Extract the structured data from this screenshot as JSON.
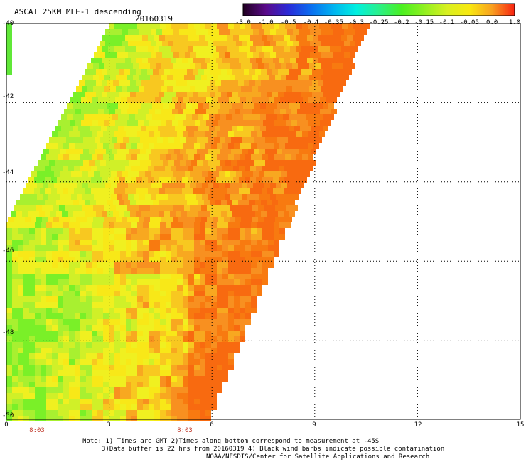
{
  "header": {
    "title": "ASCAT 25KM MLE-1 descending",
    "date": "20160319"
  },
  "colorbar": {
    "labels": [
      "-3.0",
      "-1.0",
      "-0.5",
      "-0.4",
      "-0.35",
      "-0.3",
      "-0.25",
      "-0.2",
      "-0.15",
      "-0.1",
      "-0.05",
      "0.0",
      "1.0"
    ],
    "colors": [
      "#200020",
      "#5a0a8a",
      "#2a2ad8",
      "#0a6ef0",
      "#00b4f0",
      "#00f0e0",
      "#2af08a",
      "#4af020",
      "#90f020",
      "#d8f020",
      "#f8e810",
      "#f8a020",
      "#f82010"
    ]
  },
  "axes": {
    "y_ticks": [
      "-40",
      "-42",
      "-44",
      "-46",
      "-48",
      "-50"
    ],
    "x_ticks": [
      "0",
      "3",
      "6",
      "9",
      "12",
      "15"
    ],
    "time_labels": [
      "8:03",
      "8:03"
    ]
  },
  "notes": {
    "line1": "Note: 1) Times are GMT 2)Times along bottom correspond to measurement at -45S",
    "line2": "3)Data buffer is 22 hrs from 20160319 4) Black wind barbs indicate possible contamination",
    "line3": "NOAA/NESDIS/Center for Satellite Applications and Research"
  },
  "map": {
    "lon_range": [
      0,
      15
    ],
    "lat_range": [
      -50,
      -40
    ],
    "swath": "diagonal descending pass"
  }
}
